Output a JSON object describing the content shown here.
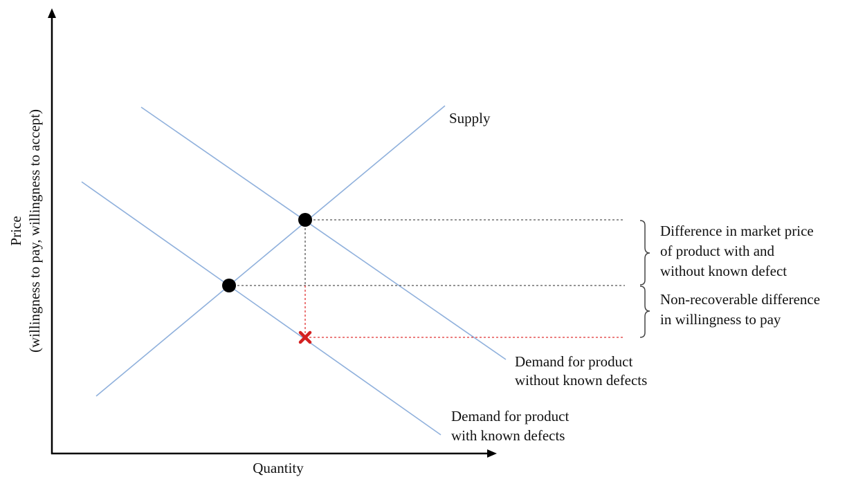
{
  "axes": {
    "x_label": "Quantity",
    "y_label_line1": "Price",
    "y_label_line2": "(willingness to pay, willingness to accept)"
  },
  "curves": {
    "supply_label": "Supply",
    "demand_without_line1": "Demand for product",
    "demand_without_line2": "without known defects",
    "demand_with_line1": "Demand for product",
    "demand_with_line2": "with known defects"
  },
  "annotations": {
    "market_price_diff_line1": "Difference in market price",
    "market_price_diff_line2": "of product with and",
    "market_price_diff_line3": "without known defect",
    "nonrecoverable_line1": "Non-recoverable difference",
    "nonrecoverable_line2": "in willingness to pay"
  },
  "colors": {
    "curve": "#8fb0dc",
    "guide": "#555555",
    "guide_red": "#e03030",
    "point": "#000000",
    "cross": "#d42020",
    "axis": "#000000"
  },
  "icons": {
    "equilibrium_point": "filled-circle",
    "wtp_point": "x-mark"
  }
}
